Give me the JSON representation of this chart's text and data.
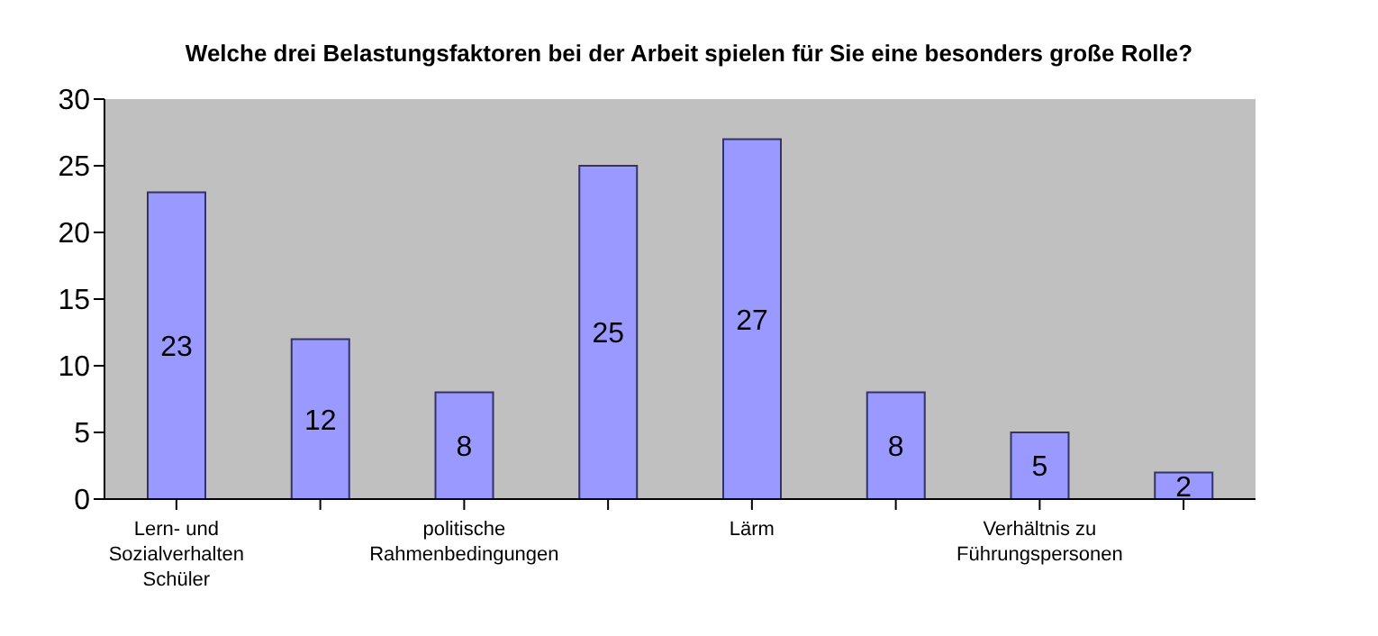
{
  "chart_data": {
    "type": "bar",
    "title": "Welche drei Belastungsfaktoren bei der Arbeit spielen für Sie eine besonders große Rolle?",
    "categories": [
      "Lern- und Sozialverhalten Schüler",
      null,
      "politische Rahmenbedingungen",
      null,
      "Lärm",
      null,
      "Verhältnis zu Führungspersonen",
      null
    ],
    "values": [
      23,
      12,
      8,
      25,
      27,
      8,
      5,
      2
    ],
    "color": "#9999ff",
    "ylim": [
      0,
      30
    ],
    "yticks": [
      0,
      5,
      10,
      15,
      20,
      25,
      30
    ],
    "grid": false,
    "data_labels": true
  }
}
